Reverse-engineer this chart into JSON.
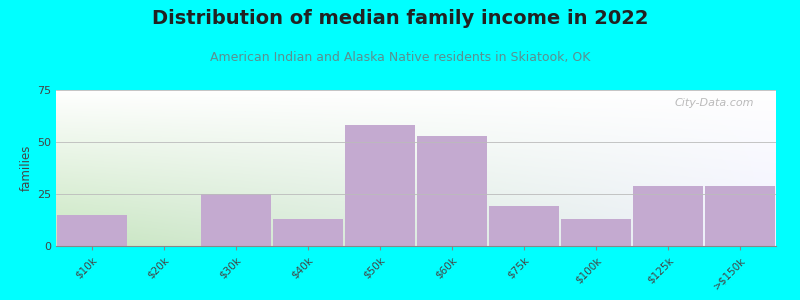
{
  "title": "Distribution of median family income in 2022",
  "subtitle": "American Indian and Alaska Native residents in Skiatook, OK",
  "categories": [
    "$10k",
    "$20k",
    "$30k",
    "$40k",
    "$50k",
    "$60k",
    "$75k",
    "$100k",
    "$125k",
    ">$150k"
  ],
  "values": [
    15,
    0,
    25,
    13,
    58,
    53,
    19,
    13,
    29,
    29
  ],
  "bar_color": "#c4aad0",
  "ylabel": "families",
  "ylim": [
    0,
    75
  ],
  "yticks": [
    0,
    25,
    50,
    75
  ],
  "background_color": "#00ffff",
  "grad_color_left": "#c8e6c0",
  "grad_color_right": "#f0f0ff",
  "title_fontsize": 14,
  "subtitle_fontsize": 9,
  "subtitle_color": "#5a9090",
  "watermark": "City-Data.com",
  "watermark_color": "#aaaaaa"
}
